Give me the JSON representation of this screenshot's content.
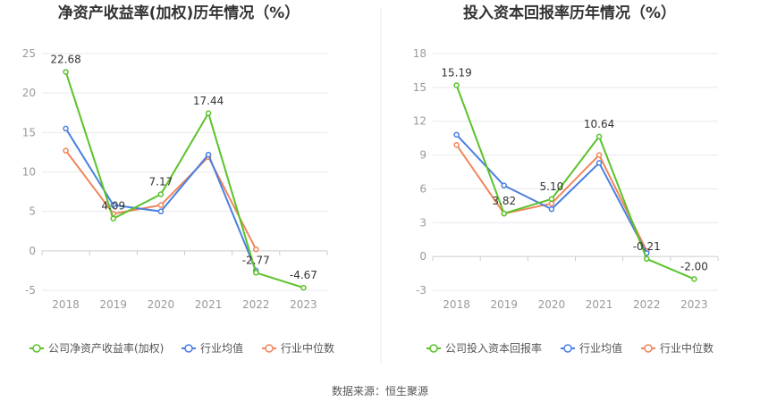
{
  "source_text": "数据来源：恒生聚源",
  "chart_data": [
    {
      "type": "line",
      "title": "净资产收益率(加权)历年情况（%）",
      "categories": [
        "2018",
        "2019",
        "2020",
        "2021",
        "2022",
        "2023"
      ],
      "ylim": [
        -5,
        25
      ],
      "yticks": [
        -5,
        0,
        5,
        10,
        15,
        20,
        25
      ],
      "grid": true,
      "legend_position": "bottom",
      "series": [
        {
          "name": "公司净资产收益率(加权)",
          "color": "#5ac229",
          "values": [
            22.68,
            4.09,
            7.17,
            17.44,
            -2.77,
            -4.67
          ],
          "labels": [
            "22.68",
            "4.09",
            "7.17",
            "17.44",
            "-2.77",
            "-4.67"
          ]
        },
        {
          "name": "行业均值",
          "color": "#4a7fe0",
          "values": [
            15.5,
            5.8,
            5.0,
            12.2,
            -2.5,
            null
          ]
        },
        {
          "name": "行业中位数",
          "color": "#f0855c",
          "values": [
            12.7,
            4.7,
            5.8,
            11.9,
            0.2,
            null
          ]
        }
      ]
    },
    {
      "type": "line",
      "title": "投入资本回报率历年情况（%）",
      "categories": [
        "2018",
        "2019",
        "2020",
        "2021",
        "2022",
        "2023"
      ],
      "ylim": [
        -3,
        18
      ],
      "yticks": [
        -3,
        0,
        3,
        6,
        9,
        12,
        15,
        18
      ],
      "grid": true,
      "legend_position": "bottom",
      "series": [
        {
          "name": "公司投入资本回报率",
          "color": "#5ac229",
          "values": [
            15.19,
            3.82,
            5.1,
            10.64,
            -0.21,
            -2.0
          ],
          "labels": [
            "15.19",
            "3.82",
            "5.10",
            "10.64",
            "-0.21",
            "-2.00"
          ]
        },
        {
          "name": "行业均值",
          "color": "#4a7fe0",
          "values": [
            10.8,
            6.3,
            4.2,
            8.3,
            0.3,
            null
          ]
        },
        {
          "name": "行业中位数",
          "color": "#f0855c",
          "values": [
            9.9,
            3.8,
            4.7,
            9.0,
            0.5,
            null
          ]
        }
      ]
    }
  ]
}
